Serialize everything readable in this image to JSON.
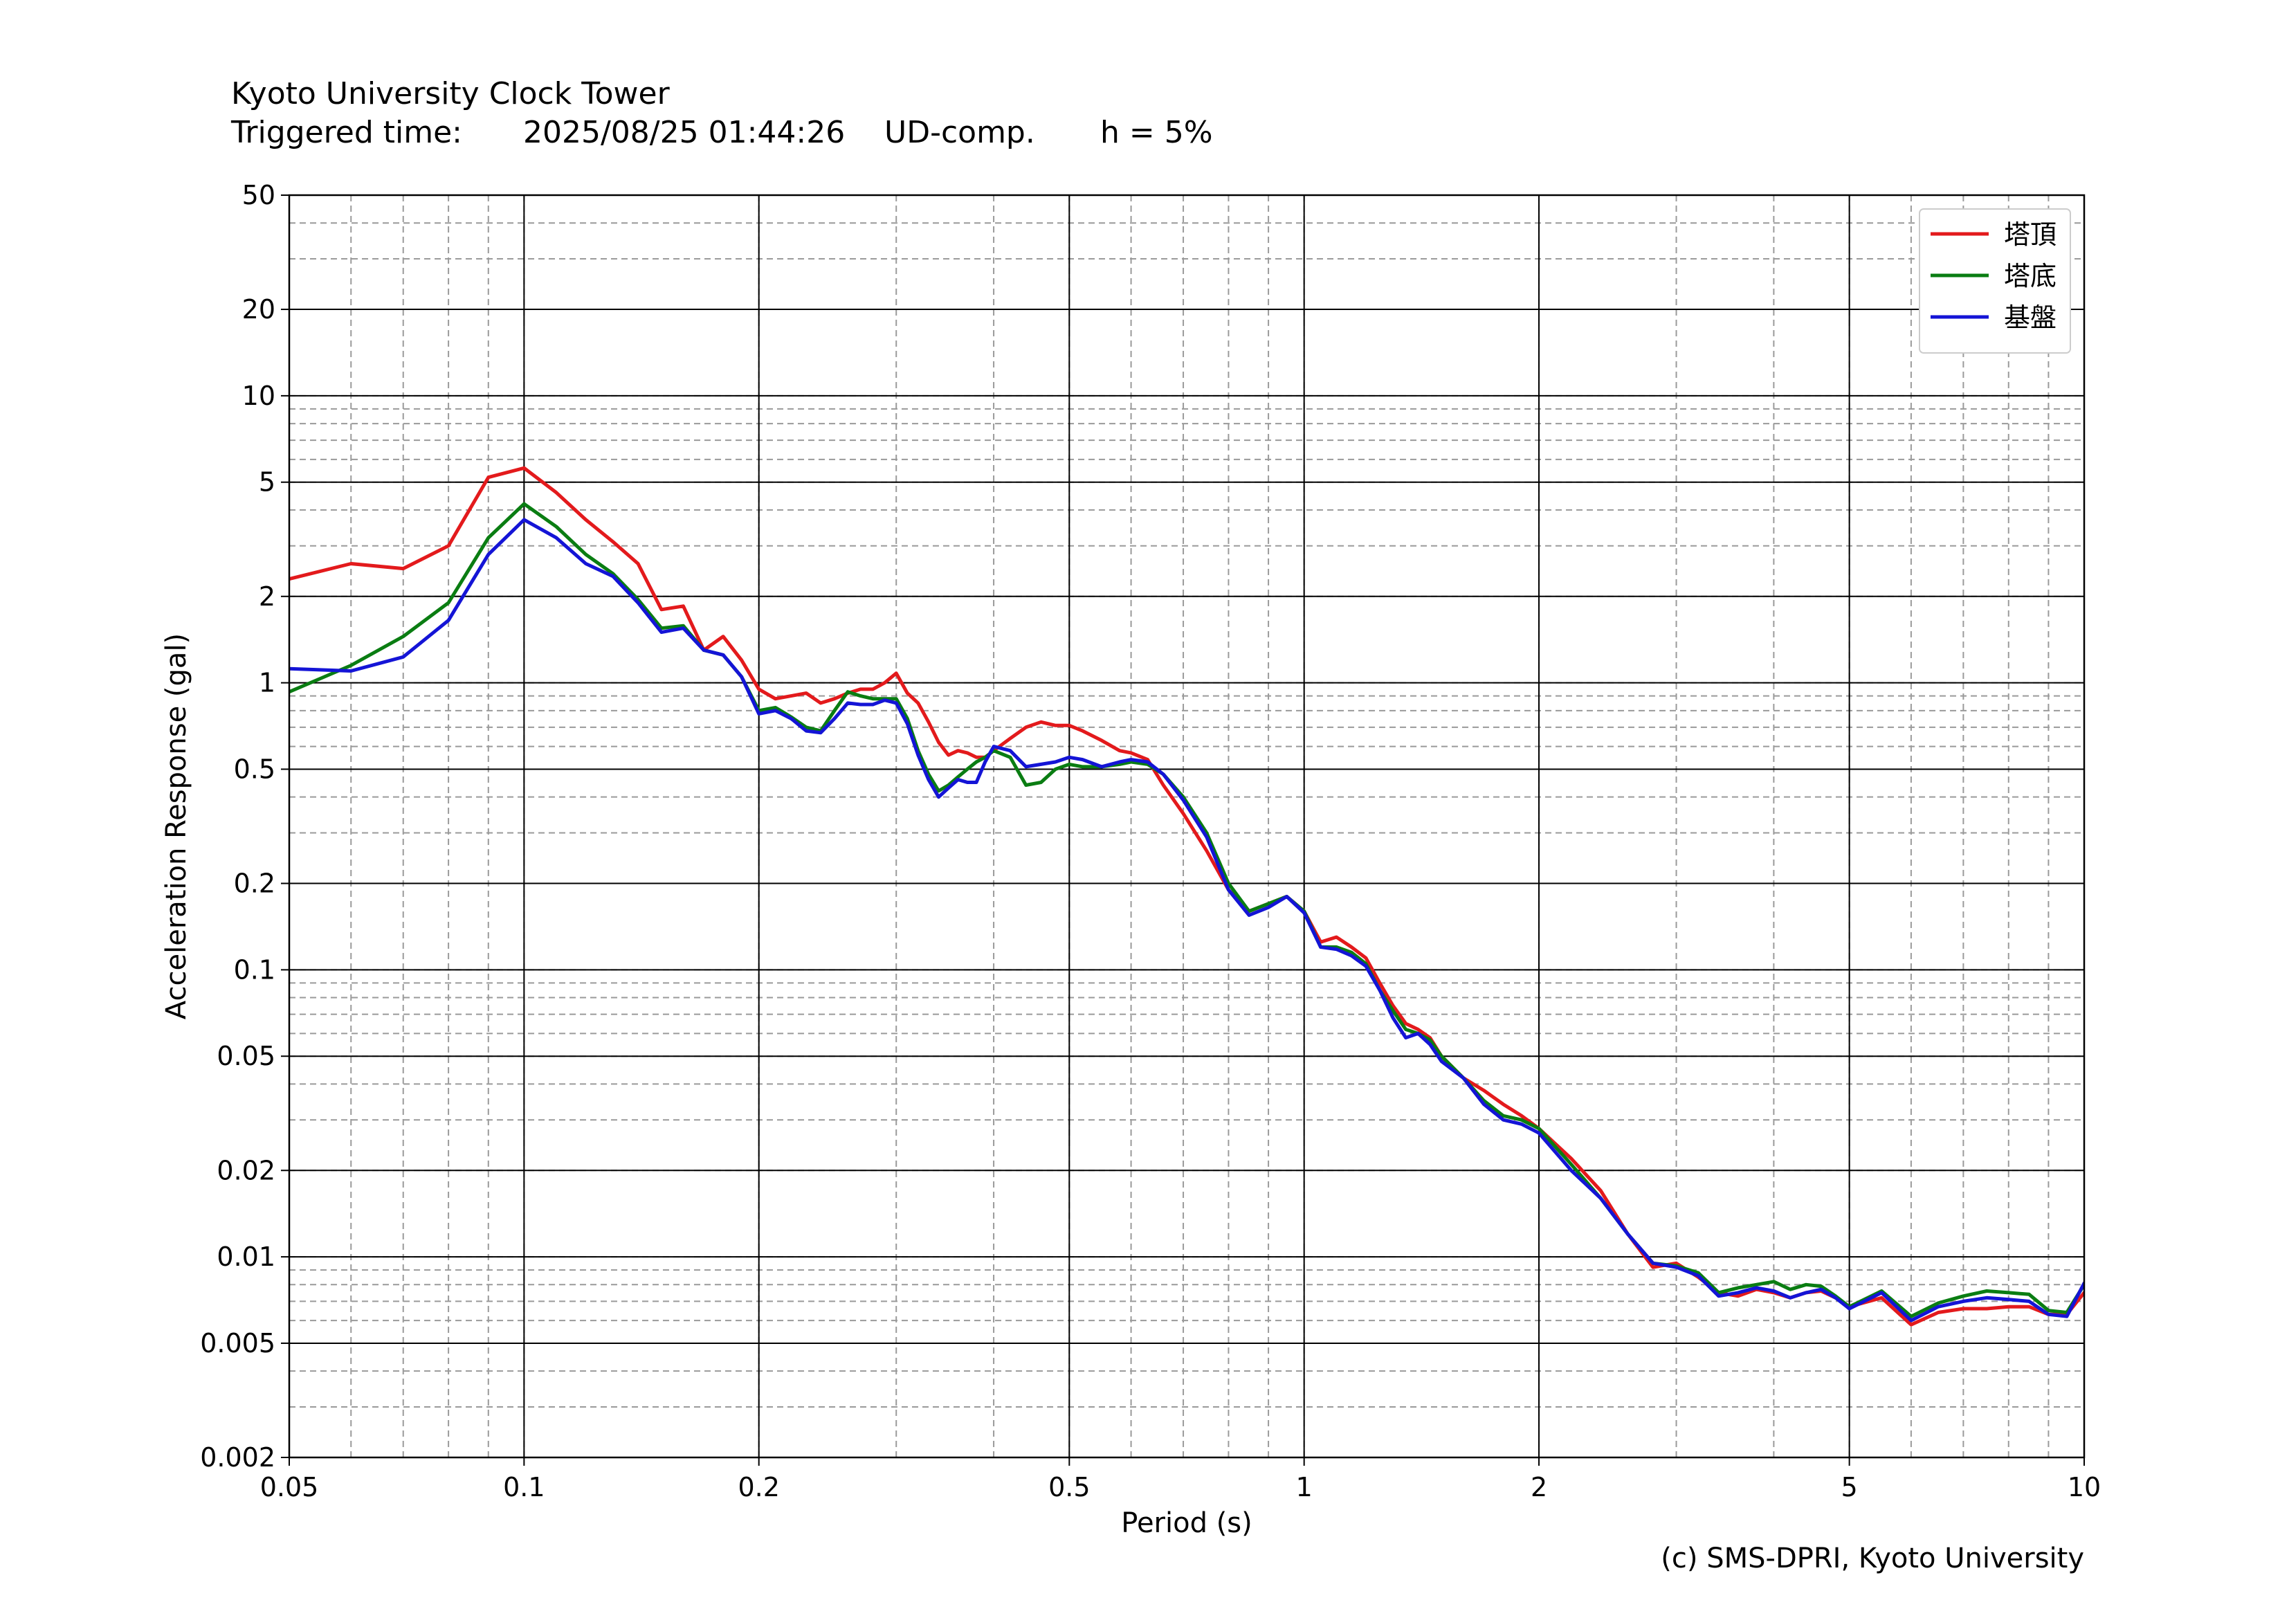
{
  "header": {
    "station": "Kyoto University Clock Tower",
    "trigger_label": "Triggered time:",
    "trigger_time": "2025/08/25 01:44:26",
    "component": "UD-comp.",
    "damping": "h = 5%"
  },
  "credit": "(c) SMS-DPRI, Kyoto University",
  "chart_data": {
    "type": "line",
    "title": "",
    "xlabel": "Period (s)",
    "ylabel": "Acceleration Response (gal)",
    "xscale": "log",
    "yscale": "log",
    "xlim": [
      0.05,
      10
    ],
    "ylim": [
      0.002,
      50
    ],
    "xticks": [
      {
        "value": 0.05,
        "label": "0.05"
      },
      {
        "value": 0.1,
        "label": "0.1"
      },
      {
        "value": 0.2,
        "label": "0.2"
      },
      {
        "value": 0.5,
        "label": "0.5"
      },
      {
        "value": 1,
        "label": "1"
      },
      {
        "value": 2,
        "label": "2"
      },
      {
        "value": 5,
        "label": "5"
      },
      {
        "value": 10,
        "label": "10"
      }
    ],
    "yticks": [
      {
        "value": 0.002,
        "label": "0.002"
      },
      {
        "value": 0.005,
        "label": "0.005"
      },
      {
        "value": 0.01,
        "label": "0.01"
      },
      {
        "value": 0.02,
        "label": "0.02"
      },
      {
        "value": 0.05,
        "label": "0.05"
      },
      {
        "value": 0.1,
        "label": "0.1"
      },
      {
        "value": 0.2,
        "label": "0.2"
      },
      {
        "value": 0.5,
        "label": "0.5"
      },
      {
        "value": 1,
        "label": "1"
      },
      {
        "value": 2,
        "label": "2"
      },
      {
        "value": 5,
        "label": "5"
      },
      {
        "value": 10,
        "label": "10"
      },
      {
        "value": 20,
        "label": "20"
      },
      {
        "value": 50,
        "label": "50"
      }
    ],
    "grid": true,
    "legend_position": "top-right",
    "series": [
      {
        "name": "塔頂",
        "color": "#e31a1c",
        "x": [
          0.05,
          0.06,
          0.07,
          0.08,
          0.09,
          0.1,
          0.11,
          0.12,
          0.13,
          0.14,
          0.15,
          0.16,
          0.17,
          0.18,
          0.19,
          0.2,
          0.21,
          0.22,
          0.23,
          0.24,
          0.25,
          0.26,
          0.27,
          0.28,
          0.29,
          0.3,
          0.31,
          0.32,
          0.33,
          0.34,
          0.35,
          0.36,
          0.37,
          0.38,
          0.39,
          0.4,
          0.42,
          0.44,
          0.46,
          0.48,
          0.5,
          0.52,
          0.55,
          0.58,
          0.6,
          0.63,
          0.66,
          0.7,
          0.75,
          0.8,
          0.85,
          0.9,
          0.95,
          1.0,
          1.05,
          1.1,
          1.15,
          1.2,
          1.25,
          1.3,
          1.35,
          1.4,
          1.45,
          1.5,
          1.6,
          1.7,
          1.8,
          1.9,
          2.0,
          2.2,
          2.4,
          2.6,
          2.8,
          3.0,
          3.2,
          3.4,
          3.6,
          3.8,
          4.0,
          4.2,
          4.4,
          4.6,
          4.8,
          5.0,
          5.5,
          6.0,
          6.5,
          7.0,
          7.5,
          8.0,
          8.5,
          9.0,
          9.5,
          10.0
        ],
        "y": [
          2.3,
          2.6,
          2.5,
          3.0,
          5.2,
          5.6,
          4.6,
          3.7,
          3.1,
          2.6,
          1.8,
          1.85,
          1.3,
          1.45,
          1.2,
          0.95,
          0.88,
          0.9,
          0.92,
          0.85,
          0.88,
          0.92,
          0.95,
          0.95,
          1.0,
          1.08,
          0.92,
          0.85,
          0.73,
          0.62,
          0.56,
          0.58,
          0.57,
          0.55,
          0.55,
          0.58,
          0.64,
          0.7,
          0.73,
          0.71,
          0.71,
          0.68,
          0.63,
          0.58,
          0.57,
          0.54,
          0.44,
          0.35,
          0.26,
          0.19,
          0.16,
          0.17,
          0.18,
          0.16,
          0.125,
          0.13,
          0.12,
          0.11,
          0.09,
          0.075,
          0.065,
          0.062,
          0.058,
          0.05,
          0.042,
          0.038,
          0.034,
          0.031,
          0.028,
          0.022,
          0.017,
          0.012,
          0.0092,
          0.0095,
          0.0085,
          0.0075,
          0.0073,
          0.0077,
          0.0075,
          0.0072,
          0.0075,
          0.0076,
          0.0072,
          0.0067,
          0.0072,
          0.0058,
          0.0064,
          0.0066,
          0.0066,
          0.0067,
          0.0067,
          0.0063,
          0.0063,
          0.0075
        ]
      },
      {
        "name": "塔底",
        "color": "#0a7d12",
        "x": [
          0.05,
          0.06,
          0.07,
          0.08,
          0.09,
          0.1,
          0.11,
          0.12,
          0.13,
          0.14,
          0.15,
          0.16,
          0.17,
          0.18,
          0.19,
          0.2,
          0.21,
          0.22,
          0.23,
          0.24,
          0.25,
          0.26,
          0.27,
          0.28,
          0.29,
          0.3,
          0.31,
          0.32,
          0.33,
          0.34,
          0.35,
          0.36,
          0.37,
          0.38,
          0.39,
          0.4,
          0.42,
          0.44,
          0.46,
          0.48,
          0.5,
          0.52,
          0.55,
          0.58,
          0.6,
          0.63,
          0.66,
          0.7,
          0.75,
          0.8,
          0.85,
          0.9,
          0.95,
          1.0,
          1.05,
          1.1,
          1.15,
          1.2,
          1.25,
          1.3,
          1.35,
          1.4,
          1.45,
          1.5,
          1.6,
          1.7,
          1.8,
          1.9,
          2.0,
          2.2,
          2.4,
          2.6,
          2.8,
          3.0,
          3.2,
          3.4,
          3.6,
          3.8,
          4.0,
          4.2,
          4.4,
          4.6,
          4.8,
          5.0,
          5.5,
          6.0,
          6.5,
          7.0,
          7.5,
          8.0,
          8.5,
          9.0,
          9.5,
          10.0
        ],
        "y": [
          0.93,
          1.15,
          1.45,
          1.9,
          3.2,
          4.2,
          3.5,
          2.8,
          2.4,
          1.95,
          1.55,
          1.58,
          1.3,
          1.25,
          1.05,
          0.8,
          0.82,
          0.76,
          0.7,
          0.68,
          0.8,
          0.93,
          0.9,
          0.88,
          0.88,
          0.88,
          0.75,
          0.58,
          0.48,
          0.42,
          0.44,
          0.47,
          0.5,
          0.53,
          0.55,
          0.58,
          0.55,
          0.44,
          0.45,
          0.5,
          0.52,
          0.51,
          0.51,
          0.52,
          0.53,
          0.52,
          0.48,
          0.4,
          0.3,
          0.2,
          0.16,
          0.17,
          0.18,
          0.16,
          0.12,
          0.12,
          0.115,
          0.105,
          0.085,
          0.072,
          0.062,
          0.06,
          0.057,
          0.05,
          0.042,
          0.035,
          0.031,
          0.03,
          0.028,
          0.021,
          0.016,
          0.012,
          0.0095,
          0.0093,
          0.0088,
          0.0075,
          0.0078,
          0.008,
          0.0082,
          0.0077,
          0.008,
          0.0079,
          0.0073,
          0.0067,
          0.0076,
          0.0062,
          0.0069,
          0.0073,
          0.0076,
          0.0075,
          0.0074,
          0.0065,
          0.0064,
          0.008
        ]
      },
      {
        "name": "基盤",
        "color": "#1414d6",
        "x": [
          0.05,
          0.06,
          0.07,
          0.08,
          0.09,
          0.1,
          0.11,
          0.12,
          0.13,
          0.14,
          0.15,
          0.16,
          0.17,
          0.18,
          0.19,
          0.2,
          0.21,
          0.22,
          0.23,
          0.24,
          0.25,
          0.26,
          0.27,
          0.28,
          0.29,
          0.3,
          0.31,
          0.32,
          0.33,
          0.34,
          0.35,
          0.36,
          0.37,
          0.38,
          0.39,
          0.4,
          0.42,
          0.44,
          0.46,
          0.48,
          0.5,
          0.52,
          0.55,
          0.58,
          0.6,
          0.63,
          0.66,
          0.7,
          0.75,
          0.8,
          0.85,
          0.9,
          0.95,
          1.0,
          1.05,
          1.1,
          1.15,
          1.2,
          1.25,
          1.3,
          1.35,
          1.4,
          1.45,
          1.5,
          1.6,
          1.7,
          1.8,
          1.9,
          2.0,
          2.2,
          2.4,
          2.6,
          2.8,
          3.0,
          3.2,
          3.4,
          3.6,
          3.8,
          4.0,
          4.2,
          4.4,
          4.6,
          4.8,
          5.0,
          5.5,
          6.0,
          6.5,
          7.0,
          7.5,
          8.0,
          8.5,
          9.0,
          9.5,
          10.0
        ],
        "y": [
          1.12,
          1.1,
          1.23,
          1.65,
          2.8,
          3.7,
          3.2,
          2.6,
          2.35,
          1.9,
          1.5,
          1.55,
          1.3,
          1.25,
          1.05,
          0.78,
          0.8,
          0.75,
          0.68,
          0.67,
          0.75,
          0.85,
          0.84,
          0.84,
          0.87,
          0.85,
          0.72,
          0.56,
          0.46,
          0.4,
          0.43,
          0.46,
          0.45,
          0.45,
          0.53,
          0.6,
          0.58,
          0.51,
          0.52,
          0.53,
          0.55,
          0.54,
          0.51,
          0.53,
          0.54,
          0.53,
          0.48,
          0.39,
          0.29,
          0.19,
          0.155,
          0.165,
          0.18,
          0.158,
          0.12,
          0.118,
          0.112,
          0.103,
          0.085,
          0.068,
          0.058,
          0.06,
          0.055,
          0.048,
          0.042,
          0.034,
          0.03,
          0.029,
          0.027,
          0.02,
          0.016,
          0.012,
          0.0095,
          0.0092,
          0.0086,
          0.0073,
          0.0075,
          0.0078,
          0.0076,
          0.0072,
          0.0075,
          0.0077,
          0.0072,
          0.0066,
          0.0075,
          0.006,
          0.0067,
          0.007,
          0.0072,
          0.0071,
          0.007,
          0.0063,
          0.0062,
          0.0081
        ]
      }
    ]
  }
}
